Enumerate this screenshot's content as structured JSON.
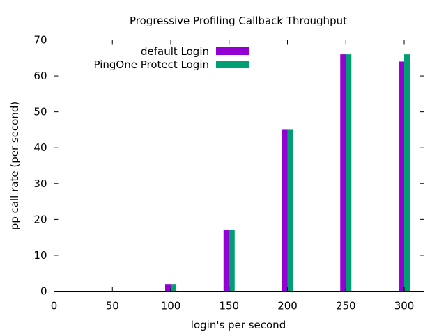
{
  "chart_data": {
    "type": "bar",
    "title": "Progressive Profiling Callback Throughput",
    "xlabel": "login's per second",
    "ylabel": "pp call rate (per second)",
    "x": [
      100,
      150,
      200,
      250,
      300
    ],
    "series": [
      {
        "name": "default Login",
        "color": "#9400d3",
        "values": [
          2,
          17,
          45,
          66,
          64
        ]
      },
      {
        "name": "PingOne Protect Login",
        "color": "#009e73",
        "values": [
          2,
          17,
          45,
          66,
          66
        ]
      }
    ],
    "xlim": [
      0,
      317
    ],
    "ylim": [
      0,
      70
    ],
    "xticks": [
      0,
      50,
      100,
      150,
      200,
      250,
      300
    ],
    "yticks": [
      0,
      10,
      20,
      30,
      40,
      50,
      60,
      70
    ],
    "grid": false,
    "legend_position": "top-left"
  }
}
